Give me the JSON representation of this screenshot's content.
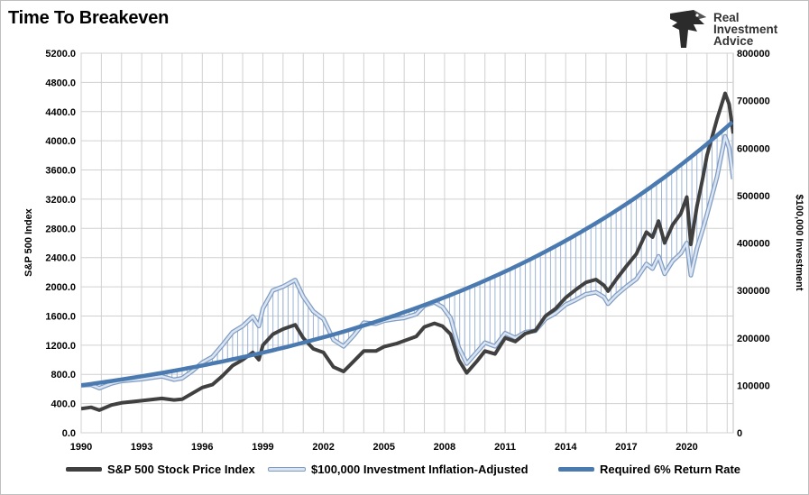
{
  "header": {
    "title": "Time To Breakeven"
  },
  "logo": {
    "line1": "Real",
    "line2": "Investment",
    "line3": "Advice"
  },
  "colors": {
    "sp500": "#404040",
    "inflation": "#a9bedb",
    "inflation_edge": "#7f9cc4",
    "required": "#4a7ab0",
    "hatch": "#9db4d6",
    "grid": "#d0d0d0"
  },
  "chart_data": {
    "type": "line",
    "title": "Time To Breakeven",
    "xlabel": "",
    "ylabel": "S&P 500 Index",
    "y2label": "$100,000 Investment",
    "xlim": [
      1990,
      2022.3
    ],
    "ylim": [
      0,
      5200
    ],
    "y2lim": [
      0,
      800000
    ],
    "x_ticks": [
      "1990",
      "1993",
      "1996",
      "1999",
      "2002",
      "2005",
      "2008",
      "2011",
      "2014",
      "2017",
      "2020"
    ],
    "y_ticks": [
      "0.0",
      "400.0",
      "800.0",
      "1200.0",
      "1600.0",
      "2000.0",
      "2400.0",
      "2800.0",
      "3200.0",
      "3600.0",
      "4000.0",
      "4400.0",
      "4800.0",
      "5200.0"
    ],
    "y2_ticks": [
      "0",
      "100000",
      "200000",
      "300000",
      "400000",
      "500000",
      "600000",
      "700000",
      "800000"
    ],
    "grid": true,
    "legend_position": "bottom",
    "series": [
      {
        "name": "S&P 500 Stock Price Index",
        "axis": "left",
        "points": [
          [
            1990,
            330
          ],
          [
            1990.5,
            350
          ],
          [
            1990.9,
            310
          ],
          [
            1991.5,
            380
          ],
          [
            1992,
            410
          ],
          [
            1993,
            440
          ],
          [
            1994,
            470
          ],
          [
            1994.6,
            450
          ],
          [
            1995,
            460
          ],
          [
            1995.5,
            540
          ],
          [
            1996,
            620
          ],
          [
            1996.5,
            660
          ],
          [
            1997,
            780
          ],
          [
            1997.5,
            920
          ],
          [
            1998,
            1000
          ],
          [
            1998.5,
            1100
          ],
          [
            1998.8,
            1000
          ],
          [
            1999,
            1200
          ],
          [
            1999.5,
            1350
          ],
          [
            2000,
            1420
          ],
          [
            2000.6,
            1480
          ],
          [
            2001,
            1300
          ],
          [
            2001.5,
            1150
          ],
          [
            2002,
            1100
          ],
          [
            2002.5,
            900
          ],
          [
            2003,
            840
          ],
          [
            2003.5,
            980
          ],
          [
            2004,
            1120
          ],
          [
            2004.6,
            1120
          ],
          [
            2005,
            1180
          ],
          [
            2005.6,
            1220
          ],
          [
            2006,
            1260
          ],
          [
            2006.6,
            1320
          ],
          [
            2007,
            1450
          ],
          [
            2007.5,
            1500
          ],
          [
            2007.9,
            1460
          ],
          [
            2008.3,
            1350
          ],
          [
            2008.7,
            1000
          ],
          [
            2009.1,
            820
          ],
          [
            2009.6,
            980
          ],
          [
            2010,
            1120
          ],
          [
            2010.5,
            1080
          ],
          [
            2011,
            1300
          ],
          [
            2011.5,
            1250
          ],
          [
            2012,
            1360
          ],
          [
            2012.5,
            1400
          ],
          [
            2013,
            1600
          ],
          [
            2013.5,
            1700
          ],
          [
            2014,
            1850
          ],
          [
            2014.5,
            1960
          ],
          [
            2015,
            2060
          ],
          [
            2015.5,
            2100
          ],
          [
            2015.9,
            2020
          ],
          [
            2016.1,
            1940
          ],
          [
            2016.5,
            2100
          ],
          [
            2017,
            2280
          ],
          [
            2017.5,
            2450
          ],
          [
            2018,
            2750
          ],
          [
            2018.3,
            2680
          ],
          [
            2018.6,
            2900
          ],
          [
            2018.9,
            2600
          ],
          [
            2019.3,
            2850
          ],
          [
            2019.7,
            3000
          ],
          [
            2020,
            3230
          ],
          [
            2020.2,
            2580
          ],
          [
            2020.5,
            3100
          ],
          [
            2020.8,
            3500
          ],
          [
            2021,
            3800
          ],
          [
            2021.5,
            4300
          ],
          [
            2021.9,
            4650
          ],
          [
            2022.1,
            4500
          ],
          [
            2022.3,
            4100
          ]
        ]
      },
      {
        "name": "$100,000 Investment Inflation-Adjusted",
        "axis": "right",
        "points": [
          [
            1990,
            100000
          ],
          [
            1990.5,
            101000
          ],
          [
            1990.9,
            94000
          ],
          [
            1991.5,
            104000
          ],
          [
            1992,
            109000
          ],
          [
            1993,
            113000
          ],
          [
            1994,
            119000
          ],
          [
            1994.6,
            112000
          ],
          [
            1995,
            115000
          ],
          [
            1995.5,
            130000
          ],
          [
            1996,
            148000
          ],
          [
            1996.5,
            160000
          ],
          [
            1997,
            185000
          ],
          [
            1997.5,
            212000
          ],
          [
            1998,
            225000
          ],
          [
            1998.5,
            245000
          ],
          [
            1998.8,
            225000
          ],
          [
            1999,
            262000
          ],
          [
            1999.5,
            300000
          ],
          [
            2000,
            308000
          ],
          [
            2000.6,
            322000
          ],
          [
            2001,
            287000
          ],
          [
            2001.5,
            256000
          ],
          [
            2002,
            240000
          ],
          [
            2002.5,
            196000
          ],
          [
            2003,
            182000
          ],
          [
            2003.5,
            205000
          ],
          [
            2004,
            232000
          ],
          [
            2004.6,
            230000
          ],
          [
            2005,
            236000
          ],
          [
            2005.6,
            240000
          ],
          [
            2006,
            242000
          ],
          [
            2006.6,
            250000
          ],
          [
            2007,
            268000
          ],
          [
            2007.5,
            275000
          ],
          [
            2007.9,
            265000
          ],
          [
            2008.3,
            242000
          ],
          [
            2008.7,
            180000
          ],
          [
            2009.1,
            146000
          ],
          [
            2009.6,
            170000
          ],
          [
            2010,
            190000
          ],
          [
            2010.5,
            182000
          ],
          [
            2011,
            210000
          ],
          [
            2011.5,
            200000
          ],
          [
            2012,
            212000
          ],
          [
            2012.5,
            215000
          ],
          [
            2013,
            240000
          ],
          [
            2013.5,
            252000
          ],
          [
            2014,
            270000
          ],
          [
            2014.5,
            280000
          ],
          [
            2015,
            292000
          ],
          [
            2015.5,
            296000
          ],
          [
            2015.9,
            286000
          ],
          [
            2016.1,
            272000
          ],
          [
            2016.5,
            290000
          ],
          [
            2017,
            308000
          ],
          [
            2017.5,
            324000
          ],
          [
            2018,
            356000
          ],
          [
            2018.3,
            346000
          ],
          [
            2018.6,
            372000
          ],
          [
            2018.9,
            335000
          ],
          [
            2019.3,
            362000
          ],
          [
            2019.7,
            378000
          ],
          [
            2020,
            400000
          ],
          [
            2020.2,
            332000
          ],
          [
            2020.5,
            388000
          ],
          [
            2020.8,
            430000
          ],
          [
            2021,
            460000
          ],
          [
            2021.5,
            540000
          ],
          [
            2021.9,
            625000
          ],
          [
            2022.1,
            600000
          ],
          [
            2022.3,
            535000
          ]
        ]
      },
      {
        "name": "Required 6% Return Rate",
        "axis": "right",
        "growth_rate": 0.06,
        "start": [
          1990,
          100000
        ],
        "end": [
          2022.3,
          656000
        ]
      }
    ]
  }
}
